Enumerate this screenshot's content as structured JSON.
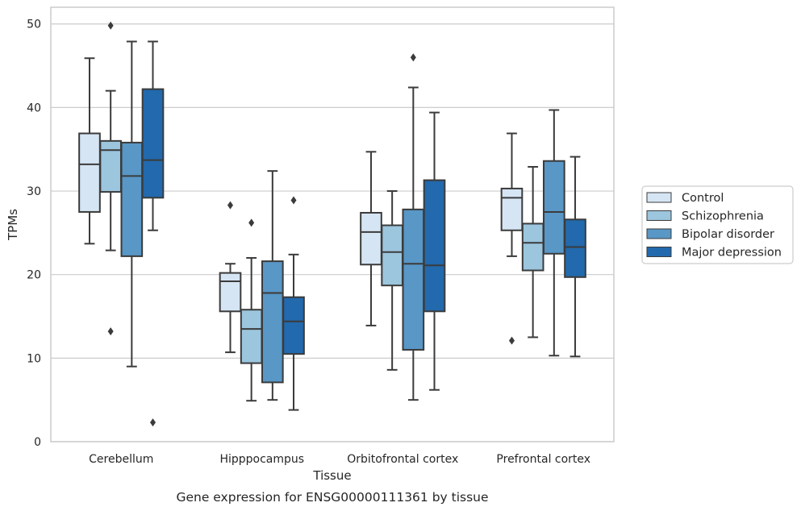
{
  "caption": "Gene expression for ENSG00000111361 by tissue",
  "chart_data": {
    "type": "box",
    "xlabel": "Tissue",
    "ylabel": "TPMs",
    "ylim": [
      0,
      52
    ],
    "yticks": [
      0,
      10,
      20,
      30,
      40,
      50
    ],
    "grid": "horizontal",
    "legend_position": "right",
    "categories": [
      "Cerebellum",
      "Hipppocampus",
      "Orbitofrontal cortex",
      "Prefrontal cortex"
    ],
    "series": [
      {
        "name": "Control",
        "color": "#d6e5f4",
        "boxes": [
          {
            "whisker_low": 23.7,
            "q1": 27.5,
            "median": 33.2,
            "q3": 36.9,
            "whisker_high": 45.9,
            "outliers": []
          },
          {
            "whisker_low": 10.7,
            "q1": 15.6,
            "median": 19.2,
            "q3": 20.2,
            "whisker_high": 21.3,
            "outliers": [
              28.3
            ]
          },
          {
            "whisker_low": 13.9,
            "q1": 21.2,
            "median": 25.1,
            "q3": 27.4,
            "whisker_high": 34.7,
            "outliers": []
          },
          {
            "whisker_low": 22.2,
            "q1": 25.3,
            "median": 29.2,
            "q3": 30.3,
            "whisker_high": 36.9,
            "outliers": [
              12.1
            ]
          }
        ]
      },
      {
        "name": "Schizophrenia",
        "color": "#9cc5de",
        "boxes": [
          {
            "whisker_low": 22.9,
            "q1": 29.9,
            "median": 34.9,
            "q3": 36.0,
            "whisker_high": 42.0,
            "outliers": [
              49.8,
              13.2
            ]
          },
          {
            "whisker_low": 4.9,
            "q1": 9.4,
            "median": 13.5,
            "q3": 15.8,
            "whisker_high": 22.0,
            "outliers": [
              26.2
            ]
          },
          {
            "whisker_low": 8.6,
            "q1": 18.7,
            "median": 22.7,
            "q3": 25.9,
            "whisker_high": 30.0,
            "outliers": []
          },
          {
            "whisker_low": 12.5,
            "q1": 20.5,
            "median": 23.8,
            "q3": 26.1,
            "whisker_high": 32.9,
            "outliers": []
          }
        ]
      },
      {
        "name": "Bipolar disorder",
        "color": "#5897c6",
        "boxes": [
          {
            "whisker_low": 9.0,
            "q1": 22.2,
            "median": 31.8,
            "q3": 35.8,
            "whisker_high": 47.9,
            "outliers": []
          },
          {
            "whisker_low": 5.0,
            "q1": 7.1,
            "median": 17.8,
            "q3": 21.6,
            "whisker_high": 32.4,
            "outliers": []
          },
          {
            "whisker_low": 5.0,
            "q1": 11.0,
            "median": 21.3,
            "q3": 27.8,
            "whisker_high": 42.4,
            "outliers": [
              46.0
            ]
          },
          {
            "whisker_low": 10.3,
            "q1": 22.5,
            "median": 27.5,
            "q3": 33.6,
            "whisker_high": 39.7,
            "outliers": []
          }
        ]
      },
      {
        "name": "Major depression",
        "color": "#2269ad",
        "boxes": [
          {
            "whisker_low": 25.3,
            "q1": 29.2,
            "median": 33.7,
            "q3": 42.2,
            "whisker_high": 47.9,
            "outliers": [
              2.3
            ]
          },
          {
            "whisker_low": 3.8,
            "q1": 10.5,
            "median": 14.4,
            "q3": 17.3,
            "whisker_high": 22.4,
            "outliers": [
              28.9
            ]
          },
          {
            "whisker_low": 6.2,
            "q1": 15.6,
            "median": 21.1,
            "q3": 31.3,
            "whisker_high": 39.4,
            "outliers": []
          },
          {
            "whisker_low": 10.2,
            "q1": 19.7,
            "median": 23.3,
            "q3": 26.6,
            "whisker_high": 34.1,
            "outliers": []
          }
        ]
      }
    ]
  }
}
